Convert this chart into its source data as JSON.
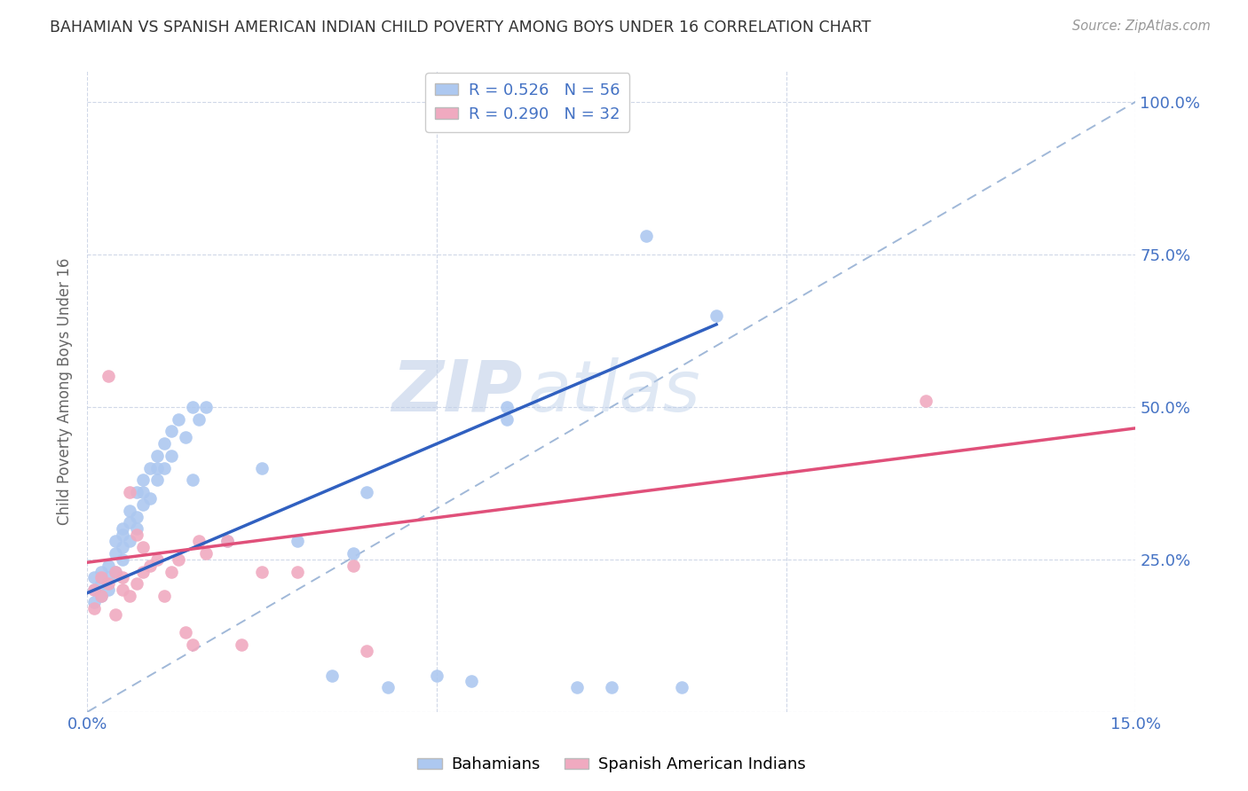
{
  "title": "BAHAMIAN VS SPANISH AMERICAN INDIAN CHILD POVERTY AMONG BOYS UNDER 16 CORRELATION CHART",
  "source": "Source: ZipAtlas.com",
  "ylabel": "Child Poverty Among Boys Under 16",
  "xlim": [
    0.0,
    0.15
  ],
  "ylim": [
    0.0,
    1.05
  ],
  "background_color": "#ffffff",
  "bahamian_color": "#adc8f0",
  "spanish_color": "#f0aac0",
  "bahamian_line_color": "#3060c0",
  "spanish_line_color": "#e0507a",
  "diagonal_color": "#a0b8d8",
  "legend_r1": "R = 0.526   N = 56",
  "legend_r2": "R = 0.290   N = 32",
  "legend_label1": "Bahamians",
  "legend_label2": "Spanish American Indians",
  "watermark_zip": "ZIP",
  "watermark_atlas": "atlas",
  "grid_color": "#d0d8e8",
  "bahamian_x": [
    0.001,
    0.001,
    0.001,
    0.002,
    0.002,
    0.002,
    0.003,
    0.003,
    0.003,
    0.004,
    0.004,
    0.004,
    0.005,
    0.005,
    0.005,
    0.005,
    0.006,
    0.006,
    0.006,
    0.007,
    0.007,
    0.007,
    0.008,
    0.008,
    0.008,
    0.009,
    0.009,
    0.01,
    0.01,
    0.01,
    0.011,
    0.011,
    0.012,
    0.012,
    0.013,
    0.014,
    0.015,
    0.015,
    0.016,
    0.017,
    0.02,
    0.025,
    0.03,
    0.035,
    0.038,
    0.04,
    0.043,
    0.05,
    0.055,
    0.06,
    0.07,
    0.075,
    0.08,
    0.085,
    0.09,
    0.06
  ],
  "bahamian_y": [
    0.2,
    0.22,
    0.18,
    0.21,
    0.23,
    0.19,
    0.24,
    0.22,
    0.2,
    0.26,
    0.28,
    0.23,
    0.3,
    0.27,
    0.25,
    0.29,
    0.33,
    0.28,
    0.31,
    0.36,
    0.3,
    0.32,
    0.38,
    0.34,
    0.36,
    0.4,
    0.35,
    0.42,
    0.38,
    0.4,
    0.44,
    0.4,
    0.46,
    0.42,
    0.48,
    0.45,
    0.5,
    0.38,
    0.48,
    0.5,
    0.28,
    0.4,
    0.28,
    0.06,
    0.26,
    0.36,
    0.04,
    0.06,
    0.05,
    0.5,
    0.04,
    0.04,
    0.78,
    0.04,
    0.65,
    0.48
  ],
  "spanish_x": [
    0.001,
    0.001,
    0.002,
    0.002,
    0.003,
    0.003,
    0.004,
    0.004,
    0.005,
    0.005,
    0.006,
    0.006,
    0.007,
    0.007,
    0.008,
    0.008,
    0.009,
    0.01,
    0.011,
    0.012,
    0.013,
    0.014,
    0.015,
    0.016,
    0.017,
    0.02,
    0.022,
    0.025,
    0.03,
    0.038,
    0.04,
    0.12
  ],
  "spanish_y": [
    0.2,
    0.17,
    0.22,
    0.19,
    0.55,
    0.21,
    0.16,
    0.23,
    0.22,
    0.2,
    0.19,
    0.36,
    0.29,
    0.21,
    0.23,
    0.27,
    0.24,
    0.25,
    0.19,
    0.23,
    0.25,
    0.13,
    0.11,
    0.28,
    0.26,
    0.28,
    0.11,
    0.23,
    0.23,
    0.24,
    0.1,
    0.51
  ],
  "bah_line_x0": 0.0,
  "bah_line_x1": 0.09,
  "bah_line_y0": 0.195,
  "bah_line_y1": 0.635,
  "spa_line_x0": 0.0,
  "spa_line_x1": 0.15,
  "spa_line_y0": 0.245,
  "spa_line_y1": 0.465
}
